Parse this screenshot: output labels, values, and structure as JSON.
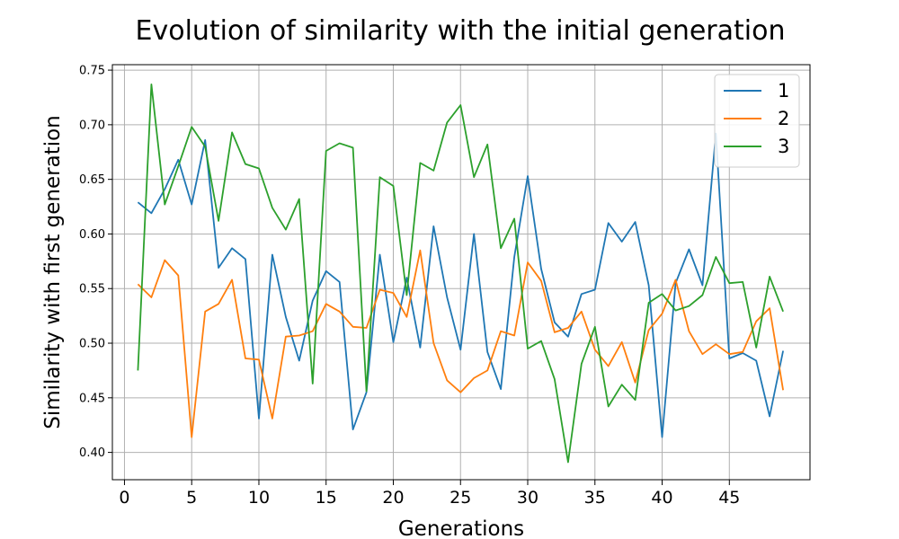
{
  "chart_data": {
    "type": "line",
    "title": "Evolution of similarity with the initial generation",
    "xlabel": "Generations",
    "ylabel": "Similarity with first generation",
    "xlim": [
      -0.9,
      51
    ],
    "ylim": [
      0.375,
      0.755
    ],
    "xticks": [
      0,
      5,
      10,
      15,
      20,
      25,
      30,
      35,
      40,
      45
    ],
    "yticks": [
      0.4,
      0.45,
      0.5,
      0.55,
      0.6,
      0.65,
      0.7,
      0.75
    ],
    "grid": true,
    "legend_position": "top-right",
    "x": [
      1,
      2,
      3,
      4,
      5,
      6,
      7,
      8,
      9,
      10,
      11,
      12,
      13,
      14,
      15,
      16,
      17,
      18,
      19,
      20,
      21,
      22,
      23,
      24,
      25,
      26,
      27,
      28,
      29,
      30,
      31,
      32,
      33,
      34,
      35,
      36,
      37,
      38,
      39,
      40,
      41,
      42,
      43,
      44,
      45,
      46,
      47,
      48,
      49
    ],
    "series": [
      {
        "name": "1",
        "color": "#1f77b4",
        "values": [
          0.629,
          0.619,
          0.641,
          0.668,
          0.627,
          0.686,
          0.569,
          0.587,
          0.577,
          0.431,
          0.581,
          0.524,
          0.484,
          0.539,
          0.566,
          0.556,
          0.421,
          0.455,
          0.581,
          0.501,
          0.56,
          0.496,
          0.607,
          0.542,
          0.494,
          0.6,
          0.492,
          0.458,
          0.579,
          0.653,
          0.568,
          0.519,
          0.506,
          0.545,
          0.549,
          0.61,
          0.593,
          0.611,
          0.553,
          0.414,
          0.555,
          0.586,
          0.553,
          0.692,
          0.486,
          0.491,
          0.484,
          0.433,
          0.493
        ]
      },
      {
        "name": "2",
        "color": "#ff7f0e",
        "values": [
          0.554,
          0.542,
          0.576,
          0.562,
          0.414,
          0.529,
          0.536,
          0.558,
          0.486,
          0.485,
          0.431,
          0.506,
          0.507,
          0.511,
          0.536,
          0.529,
          0.515,
          0.514,
          0.549,
          0.546,
          0.524,
          0.585,
          0.5,
          0.466,
          0.455,
          0.468,
          0.475,
          0.511,
          0.507,
          0.574,
          0.557,
          0.51,
          0.514,
          0.529,
          0.494,
          0.479,
          0.501,
          0.464,
          0.512,
          0.527,
          0.558,
          0.511,
          0.49,
          0.499,
          0.49,
          0.492,
          0.52,
          0.532,
          0.457
        ]
      },
      {
        "name": "3",
        "color": "#2ca02c",
        "values": [
          0.475,
          0.737,
          0.627,
          0.662,
          0.698,
          0.68,
          0.612,
          0.693,
          0.664,
          0.66,
          0.624,
          0.604,
          0.632,
          0.463,
          0.676,
          0.683,
          0.679,
          0.456,
          0.652,
          0.644,
          0.544,
          0.665,
          0.658,
          0.702,
          0.718,
          0.652,
          0.682,
          0.587,
          0.614,
          0.495,
          0.502,
          0.467,
          0.391,
          0.481,
          0.515,
          0.442,
          0.462,
          0.448,
          0.537,
          0.545,
          0.53,
          0.534,
          0.544,
          0.579,
          0.555,
          0.556,
          0.496,
          0.561,
          0.529
        ]
      }
    ]
  }
}
